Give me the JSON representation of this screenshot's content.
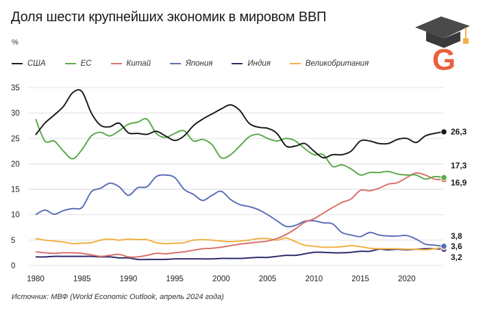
{
  "header": {
    "title": "Доля шести крупнейших экономик в мировом ВВП",
    "unit": "%"
  },
  "footer": {
    "source": "Источник: МВФ (World Economic Outlook, апрель 2024 года)"
  },
  "logo": {
    "letter": "G",
    "icon": "graduation-cap-icon",
    "color": "#e8603c"
  },
  "chart_data": {
    "type": "line",
    "title": "Доля шести крупнейших экономик в мировом ВВП",
    "ylabel": "%",
    "xlim": [
      1980,
      2024
    ],
    "ylim": [
      0,
      35
    ],
    "x_ticks": [
      1980,
      1985,
      1990,
      1995,
      2000,
      2005,
      2010,
      2015,
      2020
    ],
    "y_ticks": [
      0,
      5,
      10,
      15,
      20,
      25,
      30,
      35
    ],
    "grid": "horizontal",
    "legend": "top-left",
    "x": [
      1980,
      1981,
      1982,
      1983,
      1984,
      1985,
      1986,
      1987,
      1988,
      1989,
      1990,
      1991,
      1992,
      1993,
      1994,
      1995,
      1996,
      1997,
      1998,
      1999,
      2000,
      2001,
      2002,
      2003,
      2004,
      2005,
      2006,
      2007,
      2008,
      2009,
      2010,
      2011,
      2012,
      2013,
      2014,
      2015,
      2016,
      2017,
      2018,
      2019,
      2020,
      2021,
      2022,
      2023,
      2024
    ],
    "series": [
      {
        "name": "США",
        "color": "#1a1a1a",
        "end_label": "26,3",
        "values": [
          25.7,
          28.0,
          29.6,
          31.3,
          34.0,
          34.2,
          30.0,
          27.6,
          27.3,
          28.0,
          26.1,
          26.0,
          25.8,
          26.4,
          25.5,
          24.6,
          25.5,
          27.5,
          28.8,
          29.8,
          30.8,
          31.6,
          30.5,
          28.0,
          27.2,
          27.0,
          26.0,
          23.5,
          23.5,
          24.0,
          22.5,
          21.2,
          21.8,
          21.8,
          22.5,
          24.5,
          24.5,
          24.0,
          24.0,
          24.8,
          25.0,
          24.2,
          25.5,
          26.0,
          26.3
        ]
      },
      {
        "name": "ЕС",
        "color": "#5aa84a",
        "end_label": "17,3",
        "values": [
          28.8,
          24.5,
          24.5,
          22.5,
          21.0,
          22.8,
          25.5,
          26.2,
          25.5,
          26.5,
          27.8,
          28.2,
          28.8,
          26.0,
          25.2,
          26.0,
          26.5,
          24.5,
          24.8,
          23.8,
          21.2,
          21.8,
          23.5,
          25.3,
          25.8,
          25.0,
          24.5,
          25.0,
          24.5,
          23.0,
          21.8,
          21.8,
          19.5,
          19.8,
          19.0,
          17.8,
          18.3,
          18.3,
          18.5,
          18.0,
          17.8,
          17.8,
          17.0,
          17.5,
          17.3
        ]
      },
      {
        "name": "Китай",
        "color": "#d9706a",
        "end_label": "16,9",
        "values": [
          2.7,
          2.5,
          2.4,
          2.5,
          2.5,
          2.4,
          2.1,
          1.8,
          2.0,
          2.2,
          1.7,
          1.7,
          2.0,
          2.4,
          2.3,
          2.5,
          2.7,
          3.0,
          3.3,
          3.4,
          3.6,
          3.9,
          4.2,
          4.4,
          4.6,
          4.8,
          5.3,
          6.1,
          7.2,
          8.5,
          9.2,
          10.3,
          11.4,
          12.4,
          13.1,
          14.8,
          14.7,
          15.2,
          16.0,
          16.3,
          17.3,
          18.2,
          17.8,
          17.0,
          16.9
        ]
      },
      {
        "name": "Япония",
        "color": "#5b6fb8",
        "end_label": "3,8",
        "values": [
          10.0,
          10.9,
          10.1,
          10.8,
          11.2,
          11.4,
          14.5,
          15.2,
          16.2,
          15.5,
          13.8,
          15.3,
          15.5,
          17.5,
          17.8,
          17.3,
          15.0,
          14.0,
          12.8,
          13.8,
          14.6,
          13.0,
          12.0,
          11.6,
          11.0,
          10.0,
          8.8,
          7.7,
          7.9,
          8.7,
          8.8,
          8.4,
          8.2,
          6.5,
          6.0,
          5.7,
          6.5,
          6.0,
          5.8,
          5.8,
          5.9,
          5.2,
          4.2,
          4.0,
          3.8
        ]
      },
      {
        "name": "Индия",
        "color": "#2a2a6a",
        "end_label": "3,2",
        "values": [
          1.7,
          1.7,
          1.8,
          1.8,
          1.8,
          1.8,
          1.8,
          1.7,
          1.7,
          1.5,
          1.5,
          1.2,
          1.2,
          1.2,
          1.2,
          1.3,
          1.3,
          1.3,
          1.3,
          1.3,
          1.4,
          1.4,
          1.4,
          1.5,
          1.6,
          1.6,
          1.8,
          2.0,
          2.0,
          2.3,
          2.6,
          2.6,
          2.5,
          2.5,
          2.6,
          2.8,
          2.8,
          3.2,
          3.1,
          3.2,
          3.1,
          3.2,
          3.3,
          3.3,
          3.2
        ]
      },
      {
        "name": "Великобритания",
        "color": "#f2b143",
        "end_label": "3,6",
        "values": [
          5.3,
          5.0,
          4.8,
          4.6,
          4.3,
          4.4,
          4.5,
          5.0,
          5.2,
          5.0,
          5.2,
          5.1,
          5.1,
          4.5,
          4.3,
          4.4,
          4.5,
          5.0,
          5.1,
          5.0,
          4.8,
          4.7,
          4.8,
          5.0,
          5.3,
          5.3,
          5.0,
          5.4,
          4.7,
          4.0,
          3.8,
          3.6,
          3.6,
          3.7,
          3.9,
          3.7,
          3.4,
          3.3,
          3.3,
          3.3,
          3.2,
          3.2,
          3.1,
          3.3,
          3.6
        ]
      }
    ]
  }
}
